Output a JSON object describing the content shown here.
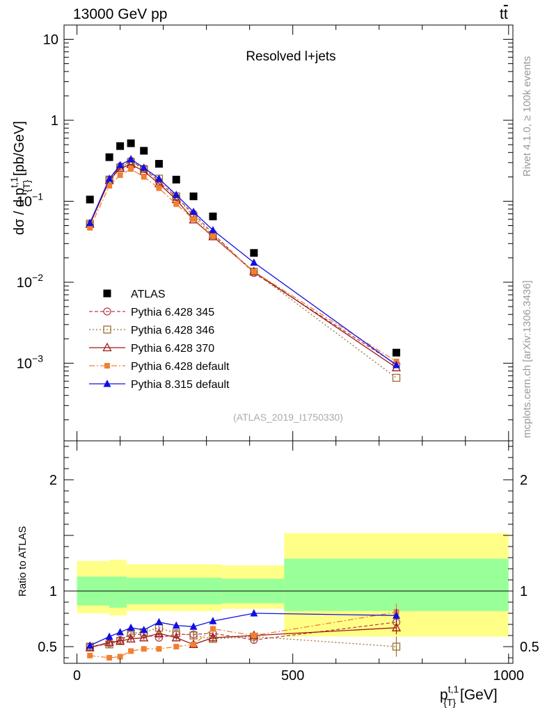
{
  "header": {
    "left": "13000 GeV pp",
    "right_t": "t",
    "right_tbar": "t"
  },
  "side_labels": {
    "rivet": "Rivet 4.1.0, ≥ 100k events",
    "mcplots": "mcplots.cern.ch [arXiv:1306.3436]"
  },
  "chart_data": [
    {
      "type": "scatter",
      "title": "Resolved l+jets",
      "watermark": "(ATLAS_2019_I1750330)",
      "xlabel": {
        "main": "p",
        "sup": "t,1",
        "sub": "{T}",
        "unit": " [GeV]"
      },
      "ylabel": {
        "pre": "dσ / d p",
        "sup": "t,1",
        "sub": "{T}",
        "unit": " [pb/GeV]"
      },
      "yscale": "log",
      "ylim": [
        0.00011,
        15
      ],
      "xlim": [
        -30,
        1010
      ],
      "y_ticks": [
        {
          "v": 10,
          "label": "10"
        },
        {
          "v": 1,
          "label": "1"
        },
        {
          "v": 0.1,
          "base": "10",
          "exp": "−1"
        },
        {
          "v": 0.01,
          "base": "10",
          "exp": "−2"
        },
        {
          "v": 0.001,
          "base": "10",
          "exp": "−3"
        }
      ],
      "legend_position": "lower-left",
      "series": [
        {
          "name": "ATLAS",
          "color": "#000000",
          "marker": "square",
          "line": "none",
          "x": [
            30,
            75,
            100,
            125,
            155,
            190,
            230,
            270,
            315,
            410,
            740
          ],
          "y": [
            0.105,
            0.35,
            0.48,
            0.52,
            0.42,
            0.29,
            0.185,
            0.115,
            0.065,
            0.023,
            0.00135
          ]
        },
        {
          "name": "Pythia 6.428 345",
          "color": "#b04050",
          "marker": "open-circle",
          "line": "dashed",
          "x": [
            30,
            75,
            100,
            125,
            155,
            190,
            230,
            270,
            315,
            410,
            740
          ],
          "y": [
            0.052,
            0.185,
            0.27,
            0.315,
            0.252,
            0.175,
            0.112,
            0.07,
            0.04,
            0.013,
            0.00097
          ]
        },
        {
          "name": "Pythia 6.428 346",
          "color": "#9c6e2c",
          "marker": "open-square",
          "line": "dotted",
          "x": [
            30,
            75,
            100,
            125,
            155,
            190,
            230,
            270,
            315,
            410,
            740
          ],
          "y": [
            0.053,
            0.185,
            0.26,
            0.305,
            0.25,
            0.19,
            0.115,
            0.065,
            0.038,
            0.0135,
            0.00066
          ]
        },
        {
          "name": "Pythia 6.428 370",
          "color": "#a01818",
          "marker": "open-triangle",
          "line": "solid",
          "x": [
            30,
            75,
            100,
            125,
            155,
            190,
            230,
            270,
            315,
            410,
            740
          ],
          "y": [
            0.052,
            0.18,
            0.255,
            0.285,
            0.235,
            0.165,
            0.105,
            0.059,
            0.0365,
            0.0135,
            0.00088
          ]
        },
        {
          "name": "Pythia 6.428 default",
          "color": "#f08030",
          "marker": "filled-square",
          "line": "dashdot",
          "x": [
            30,
            75,
            100,
            125,
            155,
            190,
            230,
            270,
            315,
            410,
            740
          ],
          "y": [
            0.047,
            0.155,
            0.21,
            0.25,
            0.2,
            0.145,
            0.092,
            0.06,
            0.037,
            0.0135,
            0.00105
          ]
        },
        {
          "name": "Pythia 8.315 default",
          "color": "#1010e0",
          "marker": "filled-triangle",
          "line": "solid",
          "x": [
            30,
            75,
            100,
            125,
            155,
            190,
            230,
            270,
            315,
            410,
            740
          ],
          "y": [
            0.054,
            0.19,
            0.28,
            0.33,
            0.26,
            0.19,
            0.12,
            0.074,
            0.044,
            0.0175,
            0.00095
          ]
        }
      ]
    },
    {
      "type": "scatter",
      "ylabel": "Ratio to ATLAS",
      "xlim": [
        -30,
        1010
      ],
      "ylim": [
        0.35,
        2.35
      ],
      "x_ticks": [
        0,
        500,
        1000
      ],
      "y_ticks": [
        0.5,
        1,
        2
      ],
      "reference_line": 1,
      "bins": [
        {
          "x0": 0,
          "x1": 75,
          "g": [
            0.87,
            1.13
          ],
          "y": [
            0.8,
            1.27
          ]
        },
        {
          "x0": 75,
          "x1": 115,
          "g": [
            0.85,
            1.13
          ],
          "y": [
            0.78,
            1.28
          ]
        },
        {
          "x0": 115,
          "x1": 335,
          "g": [
            0.88,
            1.12
          ],
          "y": [
            0.82,
            1.24
          ]
        },
        {
          "x0": 335,
          "x1": 480,
          "g": [
            0.89,
            1.11
          ],
          "y": [
            0.84,
            1.23
          ]
        },
        {
          "x0": 480,
          "x1": 1000,
          "g": [
            0.82,
            1.29
          ],
          "y": [
            0.59,
            1.52
          ]
        }
      ],
      "series": [
        {
          "name": "Pythia 6.428 345",
          "color": "#b04050",
          "marker": "open-circle",
          "line": "dashed",
          "x": [
            30,
            75,
            100,
            125,
            155,
            190,
            230,
            270,
            315,
            410,
            740
          ],
          "y": [
            0.5,
            0.53,
            0.56,
            0.61,
            0.61,
            0.58,
            0.61,
            0.61,
            0.62,
            0.56,
            0.72
          ],
          "err": [
            0.02,
            0.02,
            0.02,
            0.02,
            0.02,
            0.02,
            0.02,
            0.02,
            0.03,
            0.03,
            0.06
          ]
        },
        {
          "name": "Pythia 6.428 346",
          "color": "#9c6e2c",
          "marker": "open-square",
          "line": "dotted",
          "x": [
            30,
            75,
            100,
            125,
            155,
            190,
            230,
            270,
            315,
            410,
            740
          ],
          "y": [
            0.5,
            0.52,
            0.55,
            0.62,
            0.63,
            0.67,
            0.62,
            0.6,
            0.57,
            0.59,
            0.5
          ],
          "err": [
            0.02,
            0.02,
            0.02,
            0.02,
            0.02,
            0.02,
            0.02,
            0.02,
            0.03,
            0.03,
            0.09
          ]
        },
        {
          "name": "Pythia 6.428 370",
          "color": "#a01818",
          "marker": "open-triangle",
          "line": "solid",
          "x": [
            30,
            75,
            100,
            125,
            155,
            190,
            230,
            270,
            315,
            410,
            740
          ],
          "y": [
            0.49,
            0.54,
            0.55,
            0.57,
            0.58,
            0.62,
            0.58,
            0.52,
            0.58,
            0.6,
            0.67
          ],
          "err": [
            0.02,
            0.02,
            0.02,
            0.02,
            0.02,
            0.02,
            0.02,
            0.02,
            0.03,
            0.03,
            0.06
          ]
        },
        {
          "name": "Pythia 6.428 default",
          "color": "#f08030",
          "marker": "filled-square",
          "line": "dashdot",
          "x": [
            30,
            75,
            100,
            125,
            155,
            190,
            230,
            270,
            315,
            410,
            740
          ],
          "y": [
            0.42,
            0.4,
            0.41,
            0.46,
            0.48,
            0.48,
            0.5,
            0.52,
            0.66,
            0.6,
            0.81
          ],
          "err": [
            0.02,
            0.02,
            0.02,
            0.02,
            0.02,
            0.02,
            0.02,
            0.02,
            0.03,
            0.03,
            0.08
          ]
        },
        {
          "name": "Pythia 8.315 default",
          "color": "#1010e0",
          "marker": "filled-triangle",
          "line": "solid",
          "x": [
            30,
            75,
            100,
            125,
            155,
            190,
            230,
            270,
            315,
            410,
            740
          ],
          "y": [
            0.51,
            0.59,
            0.63,
            0.67,
            0.65,
            0.72,
            0.69,
            0.68,
            0.73,
            0.8,
            0.78
          ],
          "err": [
            0.02,
            0.02,
            0.02,
            0.02,
            0.02,
            0.02,
            0.02,
            0.02,
            0.03,
            0.03,
            0.06
          ]
        }
      ]
    }
  ]
}
